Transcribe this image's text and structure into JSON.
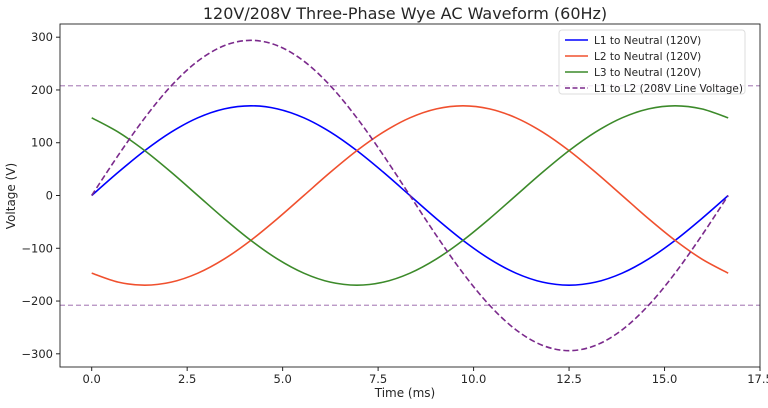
{
  "chart_data": {
    "type": "line",
    "title": "120V/208V Three-Phase Wye AC Waveform (60Hz)",
    "xlabel": "Time (ms)",
    "ylabel": "Voltage (V)",
    "xlim": [
      -0.83,
      17.5
    ],
    "ylim": [
      -325,
      325
    ],
    "xticks": [
      0.0,
      2.5,
      5.0,
      7.5,
      10.0,
      12.5,
      15.0,
      17.5
    ],
    "xtick_labels": [
      "0.0",
      "2.5",
      "5.0",
      "7.5",
      "10.0",
      "12.5",
      "15.0",
      "17.5"
    ],
    "yticks": [
      300,
      200,
      100,
      0,
      -100,
      -200,
      -300
    ],
    "ytick_labels": [
      "300",
      "200",
      "100",
      "0",
      "−100",
      "−200",
      "−300"
    ],
    "grid": false,
    "legend_position": "top-right",
    "x": [
      0,
      0.694,
      1.389,
      2.083,
      2.778,
      3.472,
      4.167,
      4.861,
      5.556,
      6.25,
      6.944,
      7.639,
      8.333,
      9.028,
      9.722,
      10.417,
      11.111,
      11.806,
      12.5,
      13.194,
      13.889,
      14.583,
      15.278,
      15.972,
      16.667
    ],
    "series": [
      {
        "name": "L1 to Neutral (120V)",
        "color": "#0000ff",
        "style": "solid",
        "values": [
          0,
          44,
          85,
          120.2,
          147.2,
          164.2,
          170,
          164.2,
          147.2,
          120.2,
          85,
          44,
          0,
          -44,
          -85,
          -120.2,
          -147.2,
          -164.2,
          -170,
          -164.2,
          -147.2,
          -120.2,
          -85,
          -44,
          0
        ]
      },
      {
        "name": "L2 to Neutral (120V)",
        "color": "#f0502e",
        "style": "solid",
        "values": [
          -147.2,
          -164.2,
          -170,
          -164.2,
          -147.2,
          -120.2,
          -85,
          -44,
          0,
          44,
          85,
          120.2,
          147.2,
          164.2,
          170,
          164.2,
          147.2,
          120.2,
          85,
          44,
          0,
          -44,
          -85,
          -120.2,
          -147.2
        ]
      },
      {
        "name": "L3 to Neutral (120V)",
        "color": "#3c8a2a",
        "style": "solid",
        "values": [
          147.2,
          120.2,
          85,
          44,
          0,
          -44,
          -85,
          -120.2,
          -147.2,
          -164.2,
          -170,
          -164.2,
          -147.2,
          -120.2,
          -85,
          -44,
          0,
          44,
          85,
          120.2,
          147.2,
          164.2,
          170,
          164.2,
          147.2
        ]
      },
      {
        "name": "L1 to L2 (208V Line Voltage)",
        "color": "#7b2a8c",
        "style": "dashed",
        "values": [
          0,
          76.1,
          147,
          207.9,
          254.6,
          284,
          294,
          284,
          254.6,
          207.9,
          147,
          76.1,
          0,
          -76.1,
          -147,
          -207.9,
          -254.6,
          -284,
          -294,
          -284,
          -254.6,
          -207.9,
          -147,
          -76.1,
          0
        ]
      }
    ],
    "hlines": [
      {
        "y": 208,
        "color": "#a070b0",
        "style": "dashed"
      },
      {
        "y": -208,
        "color": "#a070b0",
        "style": "dashed"
      }
    ]
  }
}
